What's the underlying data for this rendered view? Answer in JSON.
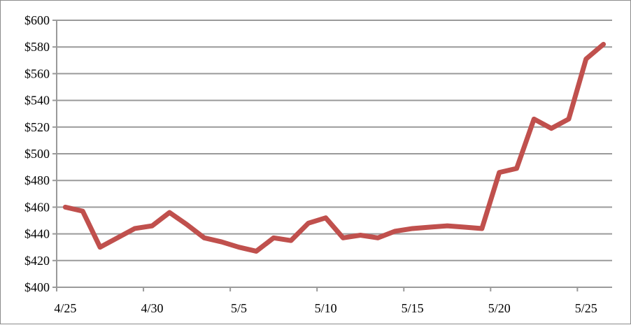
{
  "chart_data": {
    "type": "line",
    "title": "",
    "xlabel": "",
    "ylabel": "",
    "ylim": [
      400,
      600
    ],
    "y_ticks": [
      400,
      420,
      440,
      460,
      480,
      500,
      520,
      540,
      560,
      580,
      600
    ],
    "y_tick_labels": [
      "$400",
      "$420",
      "$440",
      "$460",
      "$480",
      "$500",
      "$520",
      "$540",
      "$560",
      "$580",
      "$600"
    ],
    "x_tick_labels": [
      "4/25",
      "4/30",
      "5/5",
      "5/10",
      "5/15",
      "5/20",
      "5/25"
    ],
    "grid": "horizontal",
    "legend": "none",
    "line_color": "#C0504D",
    "x": [
      "4/25",
      "4/26",
      "4/27",
      "4/28",
      "4/29",
      "4/30",
      "5/1",
      "5/2",
      "5/3",
      "5/4",
      "5/5",
      "5/6",
      "5/7",
      "5/8",
      "5/9",
      "5/10",
      "5/11",
      "5/12",
      "5/13",
      "5/14",
      "5/15",
      "5/16",
      "5/17",
      "5/18",
      "5/19",
      "5/20",
      "5/21",
      "5/22",
      "5/23",
      "5/24",
      "5/25",
      "5/26"
    ],
    "series": [
      {
        "values": [
          460,
          457,
          430,
          437,
          444,
          446,
          456,
          447,
          437,
          434,
          430,
          427,
          437,
          435,
          448,
          452,
          437,
          439,
          437,
          442,
          444,
          445,
          446,
          445,
          444,
          486,
          489,
          526,
          519,
          526,
          571,
          582
        ]
      }
    ]
  }
}
